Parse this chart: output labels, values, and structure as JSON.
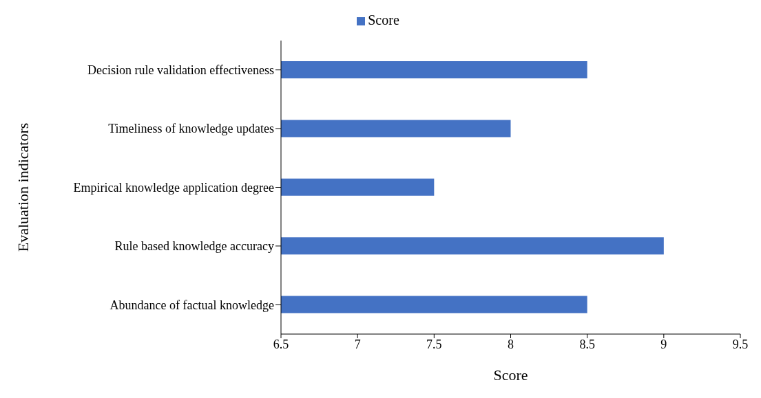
{
  "chart_data": {
    "type": "bar",
    "orientation": "horizontal",
    "xlabel": "Score",
    "ylabel": "Evaluation indicators",
    "categories": [
      "Decision rule validation effectiveness",
      "Timeliness of knowledge updates",
      "Empirical knowledge application degree",
      "Rule based knowledge accuracy",
      "Abundance of factual knowledge"
    ],
    "series": [
      {
        "name": "Score",
        "color": "#4472c4",
        "values": [
          8.5,
          8,
          7.5,
          9,
          8.5
        ]
      }
    ],
    "xlim": [
      6.5,
      9.5
    ],
    "xticks": [
      6.5,
      7,
      7.5,
      8,
      8.5,
      9,
      9.5
    ],
    "grid": false,
    "legend": "top"
  }
}
